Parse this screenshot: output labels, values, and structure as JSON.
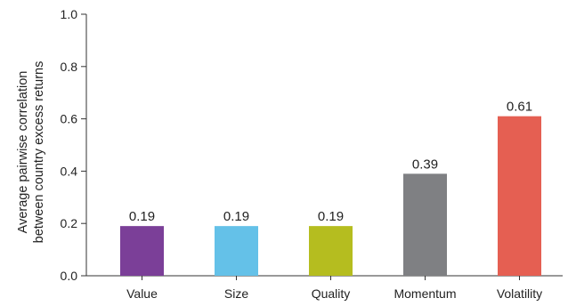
{
  "chart_data": {
    "type": "bar",
    "categories": [
      "Value",
      "Size",
      "Quality",
      "Momentum",
      "Volatility"
    ],
    "values": [
      0.19,
      0.19,
      0.19,
      0.39,
      0.61
    ],
    "value_labels": [
      "0.19",
      "0.19",
      "0.19",
      "0.39",
      "0.61"
    ],
    "colors": [
      "#7b3f98",
      "#64c1e8",
      "#b5bd1f",
      "#7f8083",
      "#e55f52"
    ],
    "title": "",
    "xlabel": "",
    "ylabel_lines": [
      "Average pairwise correlation",
      "between country excess returns"
    ],
    "ylim": [
      0,
      1.0
    ],
    "yticks": [
      "0.0",
      "0.2",
      "0.4",
      "0.6",
      "0.8",
      "1.0"
    ],
    "grid": false,
    "legend": "none"
  }
}
